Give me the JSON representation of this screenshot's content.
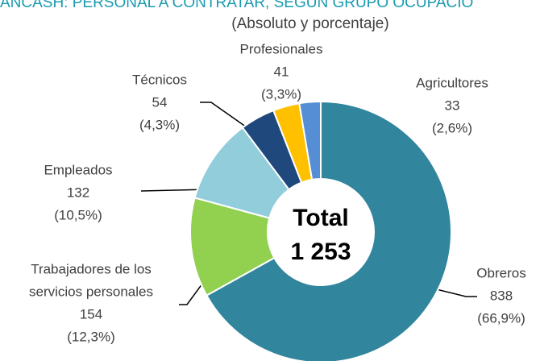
{
  "chart_data": {
    "type": "donut",
    "title": "ANCASH: PERSONAL A CONTRATAR, SEGÚN GRUPO OCUPACIO",
    "subtitle": "(Absoluto y porcentaje)",
    "categories": [
      "Obreros",
      [
        "Trabajadores de los",
        "servicios personales"
      ],
      "Empleados",
      "Técnicos",
      "Profesionales",
      "Agricultores"
    ],
    "values": [
      838,
      154,
      132,
      54,
      41,
      33
    ],
    "percent_labels": [
      "(66,9%)",
      "(12,3%)",
      "(10,5%)",
      "(4,3%)",
      "(3,3%)",
      "(2,6%)"
    ],
    "colors": [
      "#31859c",
      "#92d050",
      "#92cddc",
      "#1f497d",
      "#ffc000",
      "#558ed5"
    ],
    "center_label": "Total",
    "center_value": "1 253"
  }
}
